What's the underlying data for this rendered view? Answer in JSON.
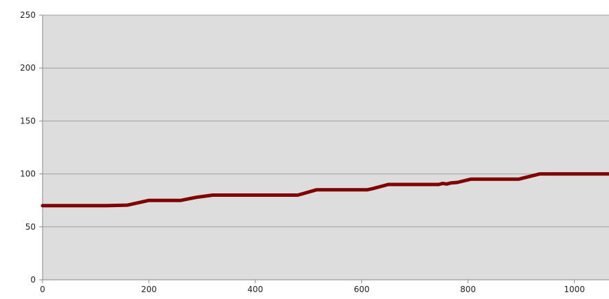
{
  "chart_data": {
    "type": "line",
    "title": "",
    "xlabel": "",
    "ylabel": "",
    "xlim": [
      0,
      1065
    ],
    "ylim": [
      0,
      250
    ],
    "x_ticks": [
      0,
      200,
      400,
      600,
      800,
      1000
    ],
    "y_ticks": [
      0,
      50,
      100,
      150,
      200,
      250
    ],
    "grid": {
      "horizontal": true,
      "vertical": false
    },
    "legend": "none",
    "colors": {
      "plot_background": "#dddddd",
      "gridline": "#a0a0a0",
      "axis": "#888888",
      "series": "#800000"
    },
    "series": [
      {
        "x": [
          0,
          120,
          160,
          200,
          260,
          290,
          320,
          480,
          515,
          610,
          620,
          650,
          745,
          752,
          760,
          768,
          780,
          805,
          895,
          935,
          1065
        ],
        "y": [
          70,
          70,
          70.5,
          75,
          75,
          78,
          80,
          80,
          85,
          85,
          86,
          90,
          90,
          91,
          90.5,
          91.5,
          92,
          95,
          95,
          100,
          100
        ]
      }
    ]
  }
}
